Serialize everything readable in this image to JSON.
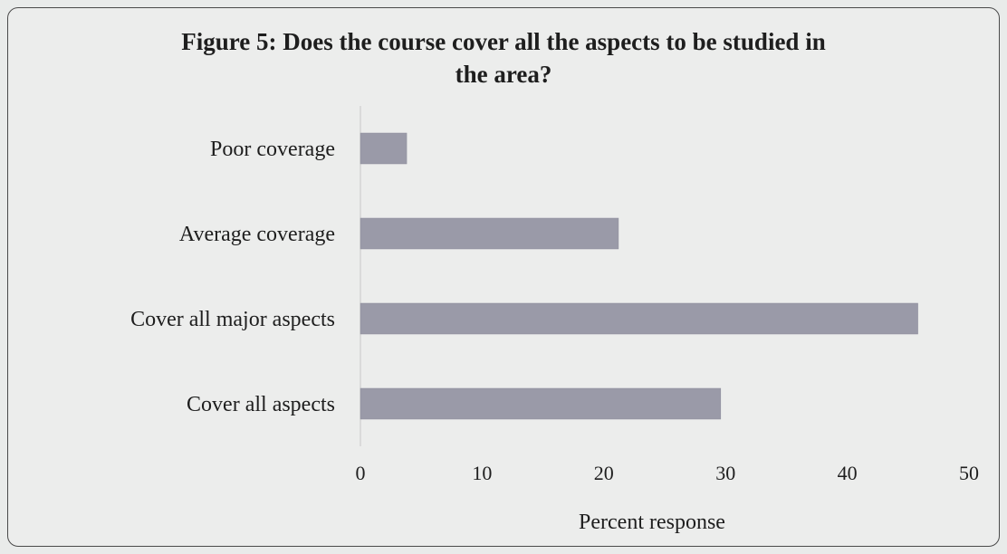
{
  "chart_data": {
    "type": "bar",
    "orientation": "horizontal",
    "title_line1": "Figure 5: Does the course cover all the aspects to be studied in",
    "title_line2": "the area?",
    "categories": [
      "Poor coverage",
      "Average coverage",
      "Cover all major aspects",
      "Cover all aspects"
    ],
    "values": [
      3.8,
      21.2,
      45.8,
      29.6
    ],
    "xlabel": "Percent response",
    "xlim": [
      0,
      50
    ],
    "xticks": [
      0,
      10,
      20,
      30,
      40,
      50
    ],
    "xtick_labels": [
      "0",
      "10",
      "20",
      "30",
      "40",
      "50"
    ],
    "grid": false,
    "legend": "none",
    "bar_color": "#9a9aa8"
  }
}
